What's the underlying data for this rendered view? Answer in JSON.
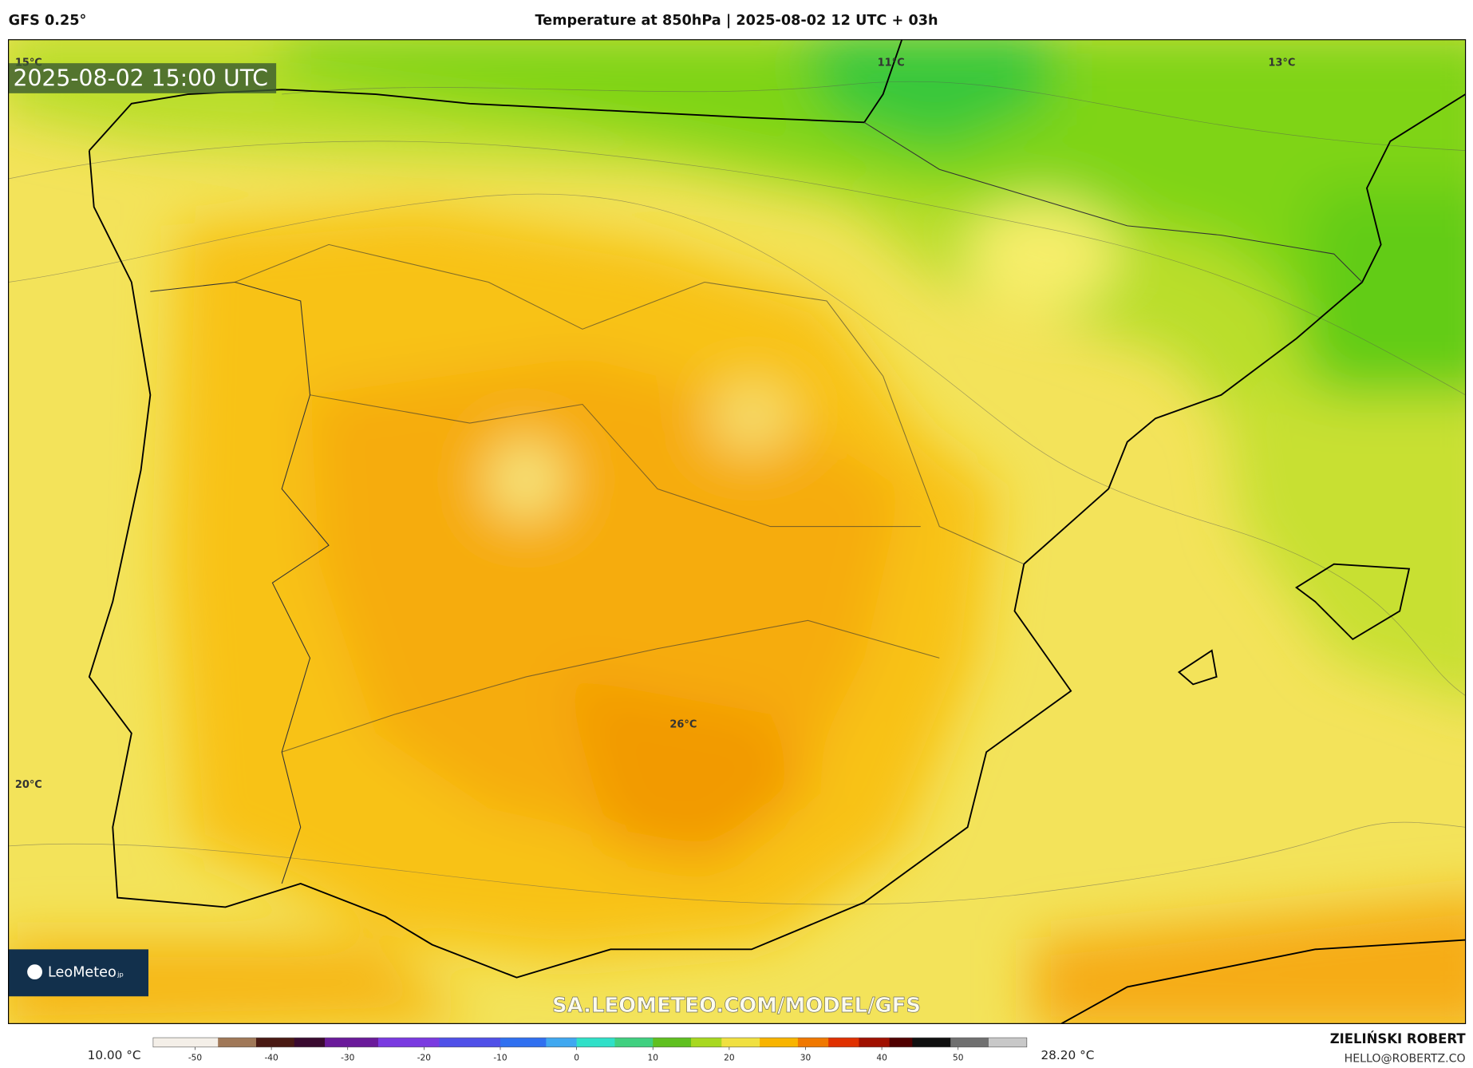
{
  "header": {
    "model": "GFS 0.25°",
    "title": "Temperature at 850hPa | 2025-08-02 12 UTC + 03h"
  },
  "map": {
    "timestamp": "2025-08-02 15:00 UTC",
    "contour_labels": [
      "15°C",
      "11°C",
      "13°C",
      "20°C",
      "26°C"
    ],
    "watermark": "SA.LEOMETEO.COM/MODEL/GFS",
    "logo": {
      "name": "LeoMeteo",
      "suffix": "jp"
    }
  },
  "colorbar": {
    "min_label": "10.00 °C",
    "max_label": "28.20 °C",
    "xlim": [
      -55.5,
      59
    ],
    "ticks": [
      -50,
      -40,
      -30,
      -20,
      -10,
      0,
      10,
      20,
      30,
      40,
      50
    ],
    "stops": [
      {
        "value": -55.5,
        "color": "#f4efe8"
      },
      {
        "value": -47,
        "color": "#a07858"
      },
      {
        "value": -42,
        "color": "#4a1a14"
      },
      {
        "value": -37,
        "color": "#3a0a30"
      },
      {
        "value": -33,
        "color": "#6a1a9a"
      },
      {
        "value": -26,
        "color": "#7a3ae0"
      },
      {
        "value": -18,
        "color": "#5050e8"
      },
      {
        "value": -10,
        "color": "#3070f0"
      },
      {
        "value": -4,
        "color": "#40a8f0"
      },
      {
        "value": 0,
        "color": "#30e0c8"
      },
      {
        "value": 5,
        "color": "#40d080"
      },
      {
        "value": 10,
        "color": "#60c020"
      },
      {
        "value": 15,
        "color": "#a8d820"
      },
      {
        "value": 19,
        "color": "#f0e040"
      },
      {
        "value": 24,
        "color": "#f8b400"
      },
      {
        "value": 29,
        "color": "#f07800"
      },
      {
        "value": 33,
        "color": "#e03000"
      },
      {
        "value": 37,
        "color": "#a01000"
      },
      {
        "value": 41,
        "color": "#500000"
      },
      {
        "value": 44,
        "color": "#101010"
      },
      {
        "value": 49,
        "color": "#707070"
      },
      {
        "value": 54,
        "color": "#c8c8c8"
      }
    ]
  },
  "credits": {
    "author": "ZIELIŃSKI ROBERT",
    "contact": "HELLO@ROBERTZ.CO"
  }
}
